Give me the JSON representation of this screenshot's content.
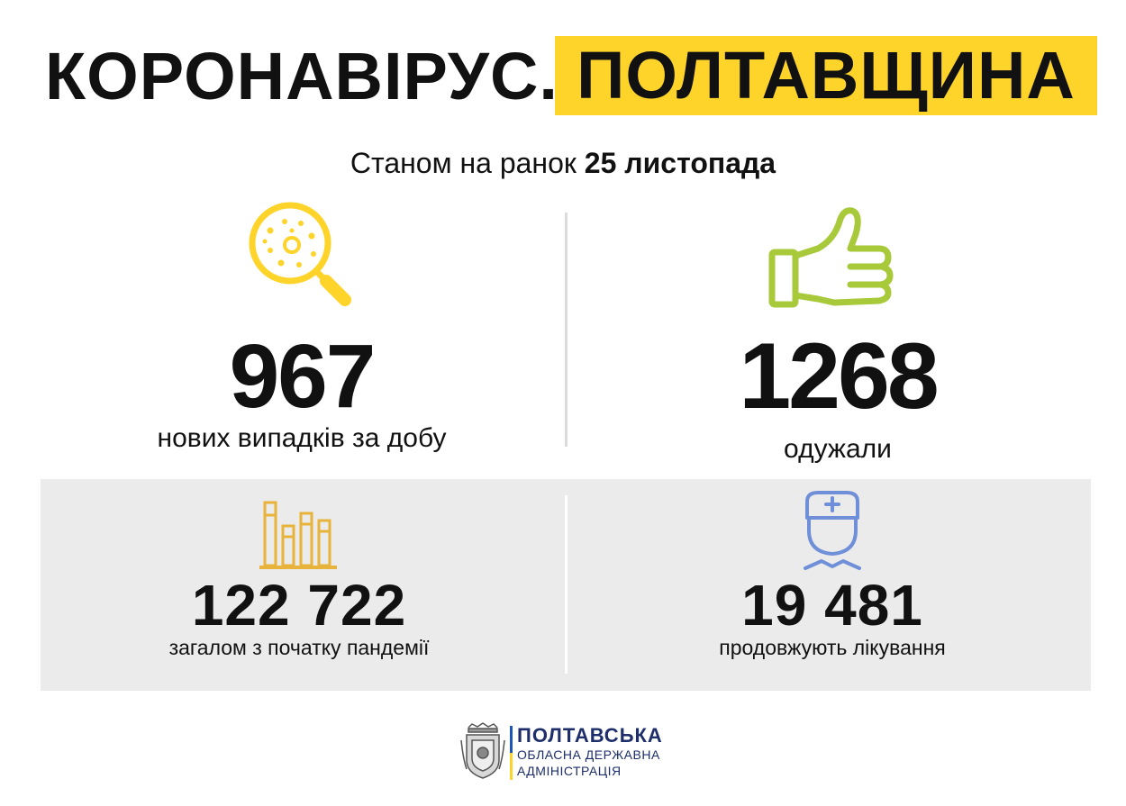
{
  "header": {
    "title_left": "КОРОНАВІРУС.",
    "title_right": "ПОЛТАВЩИНА"
  },
  "date": {
    "prefix": "Станом на ранок",
    "value": "25 листопада"
  },
  "stats": {
    "new_cases": {
      "value": "967",
      "label": "нових випадків за добу"
    },
    "recovered": {
      "value": "1268",
      "label": "одужали"
    },
    "total": {
      "value": "122 722",
      "label": "загалом з початку пандемії"
    },
    "in_treatment": {
      "value": "19 481",
      "label": "продовжують лікування"
    }
  },
  "footer": {
    "org_line1": "ПОЛТАВСЬКА",
    "org_line2": "ОБЛАСНА ДЕРЖАВНА",
    "org_line3": "АДМІНІСТРАЦІЯ"
  },
  "colors": {
    "accent_yellow": "#ffd42a",
    "virus_icon": "#ffd42a",
    "thumb_icon": "#a8c93a",
    "chart_icon": "#e8b33a",
    "doctor_icon": "#6f8fd8",
    "panel_bg": "#ebebeb"
  },
  "icons": {
    "new_cases": "magnifier-virus-icon",
    "recovered": "thumbs-up-icon",
    "total": "bar-chart-icon",
    "in_treatment": "doctor-icon",
    "footer": "coat-of-arms-icon"
  }
}
